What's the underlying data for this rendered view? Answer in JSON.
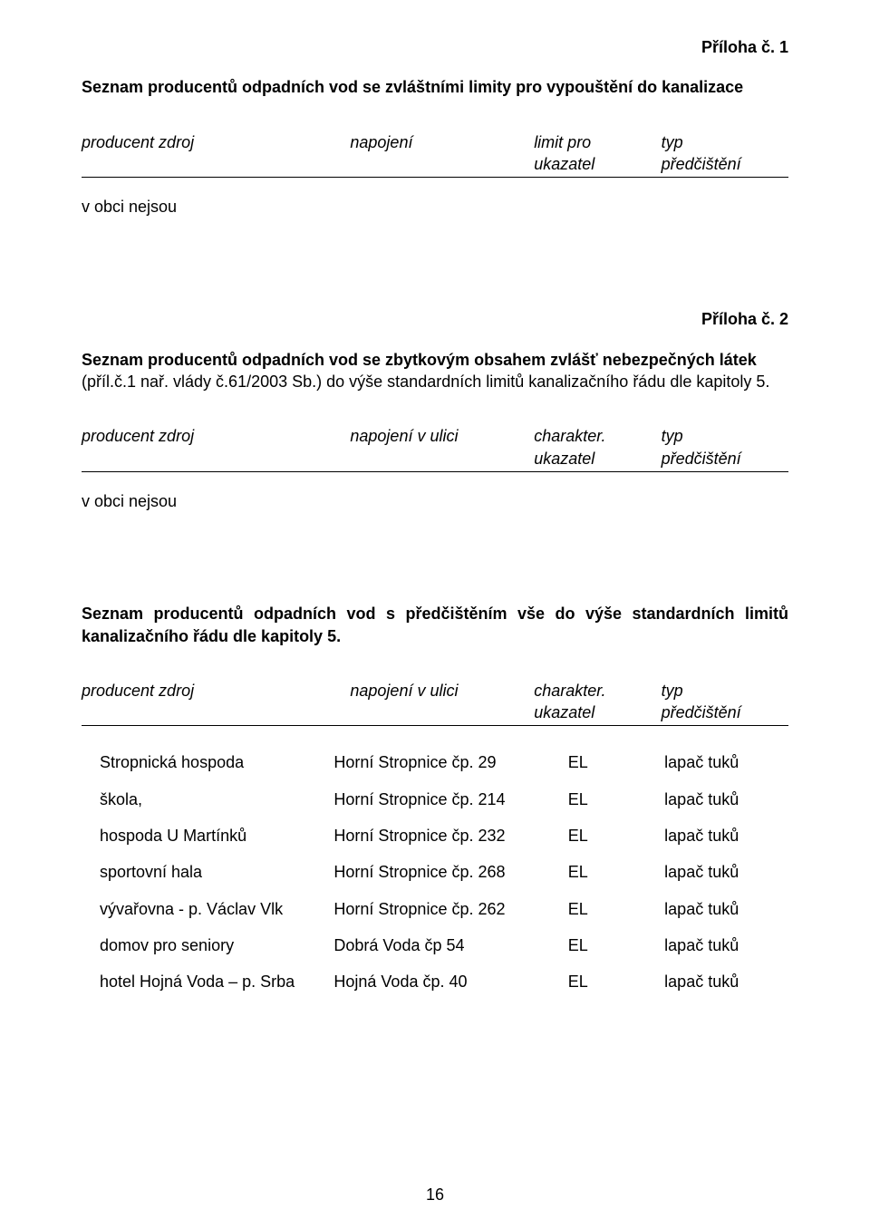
{
  "priloha1": {
    "label": "Příloha č. 1",
    "title": "Seznam producentů odpadních vod se zvláštními limity pro vypouštění do kanalizace",
    "cols": {
      "c1": "producent zdroj",
      "c2": "napojení",
      "c3a": "limit pro",
      "c3b": "ukazatel",
      "c4a": "typ",
      "c4b": "předčištění"
    },
    "none": "v obci nejsou"
  },
  "priloha2": {
    "label": "Příloha č. 2",
    "titleA": "Seznam producentů odpadních vod se zbytkovým obsahem zvlášť nebezpečných látek",
    "titleB": "(příl.č.1 nař. vlády č.61/2003 Sb.) do výše standardních limitů  kanalizačního řádu dle kapitoly  5.",
    "cols": {
      "c1": "producent zdroj",
      "c2": "napojení v ulici",
      "c3a": "charakter.",
      "c3b": "ukazatel",
      "c4a": "typ",
      "c4b": "předčištění"
    },
    "none": "v obci nejsou"
  },
  "section3": {
    "title": "Seznam producentů odpadních vod s předčištěním vše do výše standardních limitů kanalizačního řádu dle kapitoly  5.",
    "cols": {
      "c1": "producent zdroj",
      "c2": "napojení v ulici",
      "c3a": "charakter.",
      "c3b": "ukazatel",
      "c4a": "typ",
      "c4b": "předčištění"
    },
    "rows": [
      {
        "c1": "Stropnická hospoda",
        "c2": "Horní Stropnice čp. 29",
        "c3": "EL",
        "c4": "lapač tuků"
      },
      {
        "c1": "škola,",
        "c2": "Horní Stropnice čp. 214",
        "c3": "EL",
        "c4": "lapač tuků"
      },
      {
        "c1": "hospoda U Martínků",
        "c2": "Horní Stropnice čp. 232",
        "c3": "EL",
        "c4": "lapač tuků"
      },
      {
        "c1": "sportovní hala",
        "c2": "Horní Stropnice čp. 268",
        "c3": "EL",
        "c4": "lapač tuků"
      },
      {
        "c1": "vývařovna - p. Václav Vlk",
        "c2": "Horní Stropnice čp. 262",
        "c3": "EL",
        "c4": "lapač tuků"
      },
      {
        "c1": "domov pro seniory",
        "c2": "Dobrá Voda  čp 54",
        "c3": "EL",
        "c4": "lapač tuků"
      },
      {
        "c1": "hotel Hojná Voda – p. Srba",
        "c2": "Hojná Voda  čp. 40",
        "c3": "EL",
        "c4": "lapač tuků"
      }
    ]
  },
  "pageNumber": "16"
}
